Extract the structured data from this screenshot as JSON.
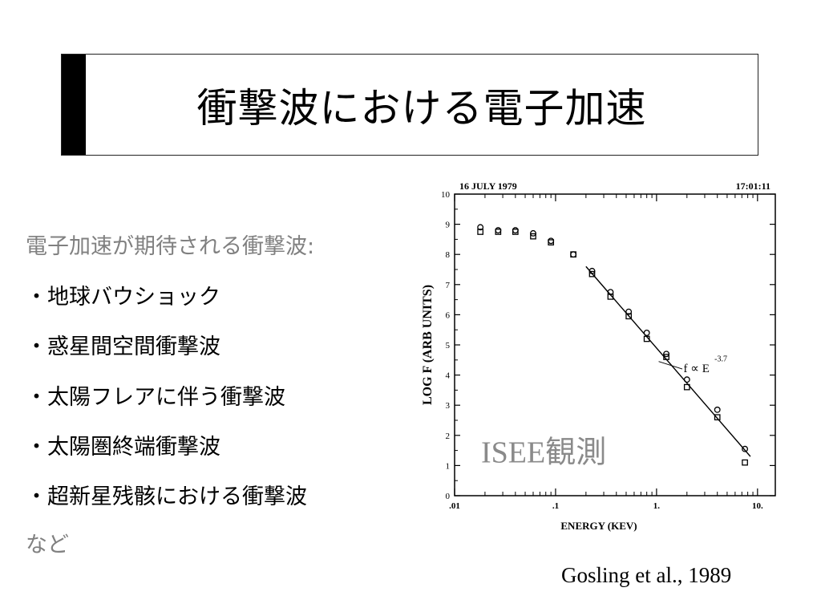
{
  "title": "衝撃波における電子加速",
  "left": {
    "intro": "電子加速が期待される衝撃波:",
    "bullets": [
      "・地球バウショック",
      "・惑星間空間衝撃波",
      "・太陽フレアに伴う衝撃波",
      "・太陽圏終端衝撃波",
      "・超新星残骸における衝撃波"
    ],
    "trailer": "など"
  },
  "citation": "Gosling et al., 1989",
  "chart_data": {
    "type": "scatter",
    "date_label": "16 JULY 1979",
    "time_label": "17:01:11",
    "xlabel": "ENERGY (KEV)",
    "ylabel": "LOG F (ARB UNITS)",
    "x_scale": "log",
    "xlim": [
      0.01,
      15
    ],
    "ylim": [
      0,
      10
    ],
    "x_ticks": [
      ".01",
      ".1",
      "1.",
      "10."
    ],
    "y_ticks": [
      "0",
      "1",
      "2",
      "3",
      "4",
      "5",
      "6",
      "7",
      "8",
      "9",
      "10"
    ],
    "fit_label": "f ∝ E",
    "fit_exponent": "-3.7",
    "overlay_text": "ISEE観測",
    "series": [
      {
        "marker": "circle",
        "x": [
          0.018,
          0.027,
          0.04,
          0.06,
          0.09,
          0.15,
          0.23,
          0.35,
          0.53,
          0.8,
          1.25,
          2.0,
          4.0,
          7.5
        ],
        "y": [
          8.9,
          8.8,
          8.8,
          8.7,
          8.45,
          8.0,
          7.45,
          6.75,
          6.1,
          5.4,
          4.7,
          3.85,
          2.85,
          1.55
        ]
      },
      {
        "marker": "square",
        "x": [
          0.018,
          0.027,
          0.04,
          0.06,
          0.09,
          0.15,
          0.23,
          0.35,
          0.53,
          0.8,
          1.25,
          2.0,
          4.0,
          7.5
        ],
        "y": [
          8.75,
          8.75,
          8.75,
          8.6,
          8.4,
          8.0,
          7.35,
          6.6,
          5.95,
          5.2,
          4.6,
          3.6,
          2.6,
          1.1
        ]
      }
    ],
    "fit_line": {
      "x": [
        0.2,
        8.5
      ],
      "y": [
        7.6,
        1.3
      ]
    }
  }
}
